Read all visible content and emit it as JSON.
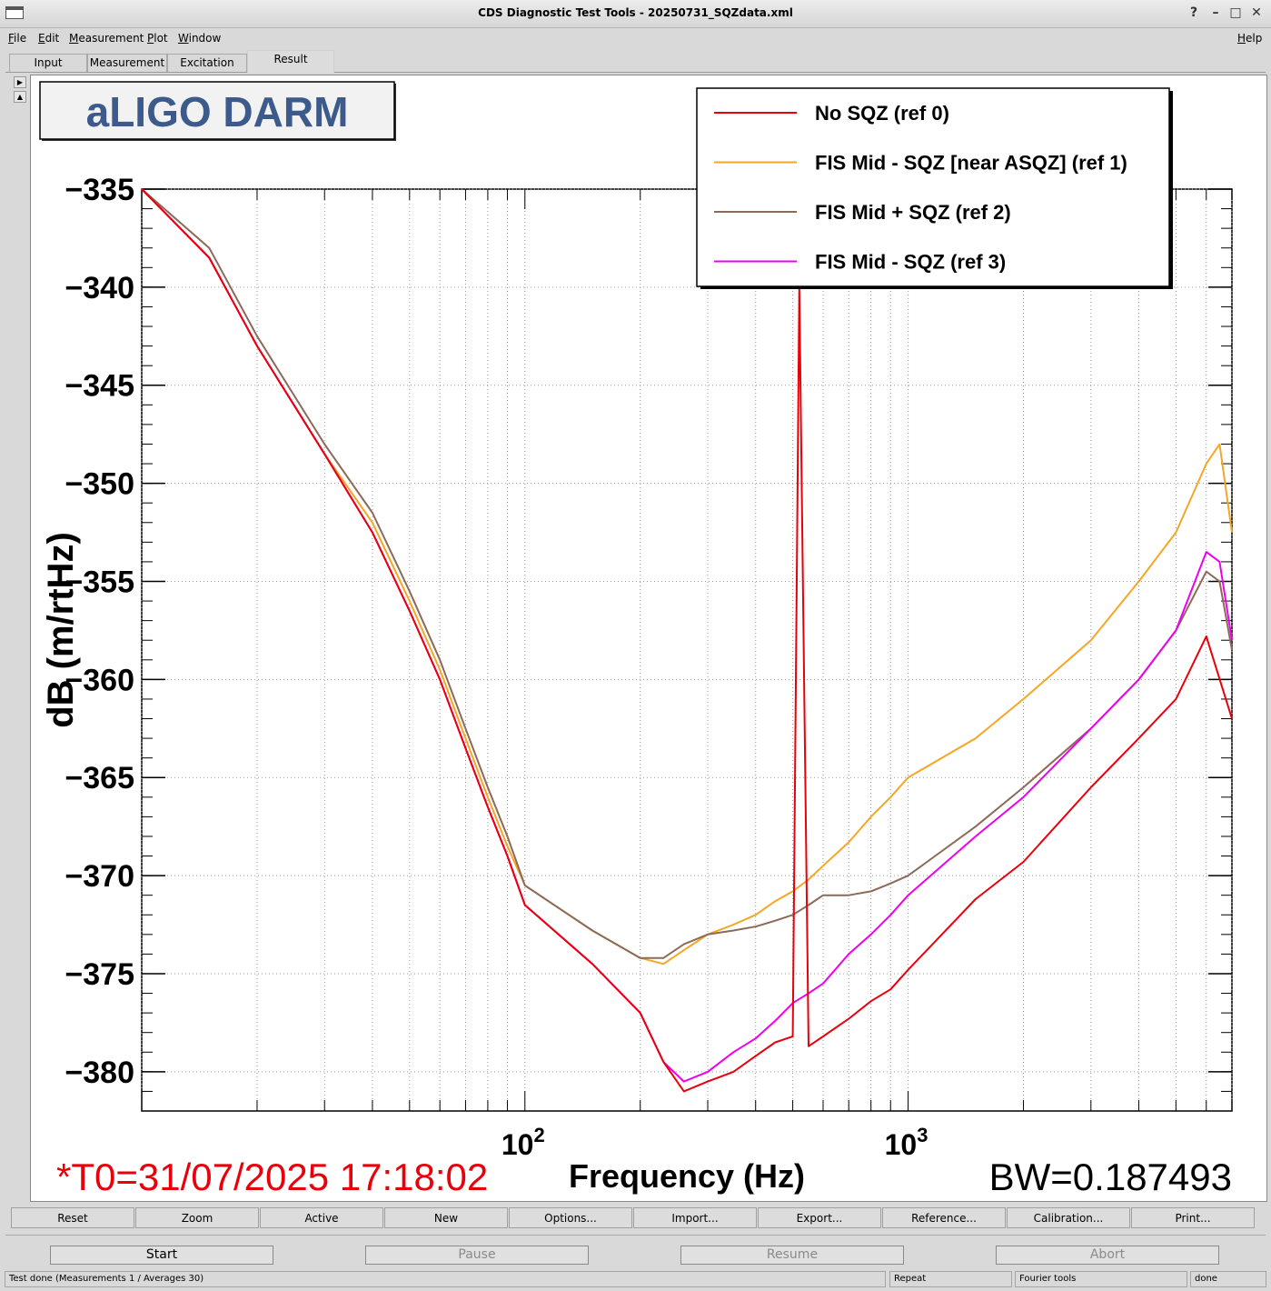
{
  "window": {
    "title": "CDS Diagnostic Test Tools - 20250731_SQZdata.xml"
  },
  "menubar": {
    "file": "File",
    "edit": "Edit",
    "measurement": "Measurement",
    "plot": "Plot",
    "window": "Window",
    "help": "Help"
  },
  "tabs": [
    "Input",
    "Measurement",
    "Excitation",
    "Result"
  ],
  "plot": {
    "title_box": "aLIGO DARM",
    "t0": "*T0=31/07/2025 17:18:02",
    "bw": "BW=0.187493",
    "colors": {
      "ref0": "#e8000b",
      "ref1": "#f5a623",
      "ref2": "#8b6a5a",
      "ref3": "#ee00ee",
      "t0": "#e8000b",
      "title_box": "#3d5a8c"
    }
  },
  "chart_data": {
    "type": "line",
    "xlabel": "Frequency (Hz)",
    "ylabel": "dB (m/rtHz)",
    "xscale": "log",
    "xlim": [
      10,
      7000
    ],
    "ylim": [
      -382,
      -335
    ],
    "grid": true,
    "legend_position": "top-right",
    "x_tick_labels": [
      "10^2",
      "10^3"
    ],
    "y_tick_labels": [
      "−335",
      "−340",
      "−345",
      "−350",
      "−355",
      "−360",
      "−365",
      "−370",
      "−375",
      "−380"
    ],
    "y_ticks": [
      -335,
      -340,
      -345,
      -350,
      -355,
      -360,
      -365,
      -370,
      -375,
      -380
    ],
    "series": [
      {
        "name": "No SQZ (ref 0)",
        "color": "#e8000b",
        "x": [
          10,
          15,
          20,
          30,
          40,
          50,
          60,
          70,
          80,
          90,
          100,
          150,
          200,
          230,
          260,
          300,
          350,
          400,
          450,
          500,
          520,
          550,
          600,
          700,
          800,
          900,
          1000,
          1500,
          2000,
          3000,
          4000,
          5000,
          6000,
          7000
        ],
        "y": [
          -335,
          -338.5,
          -343,
          -348.5,
          -352.5,
          -356.5,
          -360,
          -363.5,
          -366.5,
          -369,
          -371.5,
          -374.5,
          -377,
          -379.5,
          -381,
          -380.5,
          -380,
          -379.2,
          -378.5,
          -378.2,
          -340,
          -378.7,
          -378.2,
          -377.3,
          -376.4,
          -375.8,
          -374.8,
          -371.2,
          -369.3,
          -365.5,
          -363,
          -361,
          -357.8,
          -362
        ]
      },
      {
        "name": "FIS Mid - SQZ [near ASQZ] (ref 1)",
        "color": "#f5a623",
        "x": [
          10,
          15,
          20,
          30,
          40,
          50,
          60,
          70,
          80,
          90,
          100,
          150,
          200,
          230,
          260,
          300,
          350,
          400,
          450,
          500,
          550,
          600,
          700,
          800,
          900,
          1000,
          1500,
          2000,
          3000,
          4000,
          5000,
          6000,
          6500,
          7000
        ],
        "y": [
          -335,
          -338.5,
          -343,
          -348.5,
          -352,
          -356,
          -359.5,
          -363,
          -366,
          -368.5,
          -370.5,
          -372.8,
          -374.2,
          -374.5,
          -373.8,
          -373,
          -372.5,
          -372,
          -371.3,
          -370.8,
          -370.2,
          -369.5,
          -368.3,
          -367,
          -366,
          -365,
          -363,
          -361,
          -358,
          -355,
          -352.5,
          -349,
          -348,
          -352.5
        ]
      },
      {
        "name": "FIS Mid + SQZ (ref 2)",
        "color": "#8b6a5a",
        "x": [
          10,
          15,
          20,
          30,
          40,
          50,
          60,
          70,
          80,
          90,
          100,
          150,
          200,
          230,
          260,
          300,
          350,
          400,
          450,
          500,
          550,
          600,
          700,
          800,
          900,
          1000,
          1500,
          2000,
          3000,
          4000,
          5000,
          6000,
          6500,
          7000
        ],
        "y": [
          -334.5,
          -338,
          -342.5,
          -348,
          -351.5,
          -355.5,
          -359,
          -362.5,
          -365.5,
          -368,
          -370.5,
          -372.8,
          -374.2,
          -374.2,
          -373.5,
          -373,
          -372.8,
          -372.6,
          -372.3,
          -372,
          -371.5,
          -371,
          -371,
          -370.8,
          -370.4,
          -370,
          -367.5,
          -365.5,
          -362.5,
          -360,
          -357.5,
          -354.5,
          -355,
          -358.5
        ]
      },
      {
        "name": "FIS Mid - SQZ (ref 3)",
        "color": "#ee00ee",
        "x": [
          10,
          15,
          20,
          30,
          40,
          50,
          60,
          70,
          80,
          90,
          100,
          150,
          200,
          230,
          260,
          300,
          350,
          400,
          450,
          500,
          550,
          600,
          700,
          800,
          900,
          1000,
          1500,
          2000,
          3000,
          4000,
          5000,
          6000,
          6500,
          7000
        ],
        "y": [
          -335,
          -338.5,
          -343,
          -348.5,
          -352.5,
          -356.5,
          -360,
          -363.5,
          -366.5,
          -369,
          -371.5,
          -374.5,
          -377,
          -379.5,
          -380.5,
          -380,
          -379,
          -378.3,
          -377.4,
          -376.5,
          -376,
          -375.5,
          -374,
          -373,
          -372,
          -371,
          -368,
          -366,
          -362.5,
          -360,
          -357.5,
          -353.5,
          -354,
          -358
        ]
      }
    ]
  },
  "toolbar": [
    "Reset",
    "Zoom",
    "Active",
    "New",
    "Options...",
    "Import...",
    "Export...",
    "Reference...",
    "Calibration...",
    "Print..."
  ],
  "controls": {
    "start": "Start",
    "pause": "Pause",
    "resume": "Resume",
    "abort": "Abort"
  },
  "status": {
    "message": "Test done (Measurements 1 / Averages 30)",
    "repeat": "Repeat",
    "mode": "Fourier tools",
    "state": "done"
  }
}
